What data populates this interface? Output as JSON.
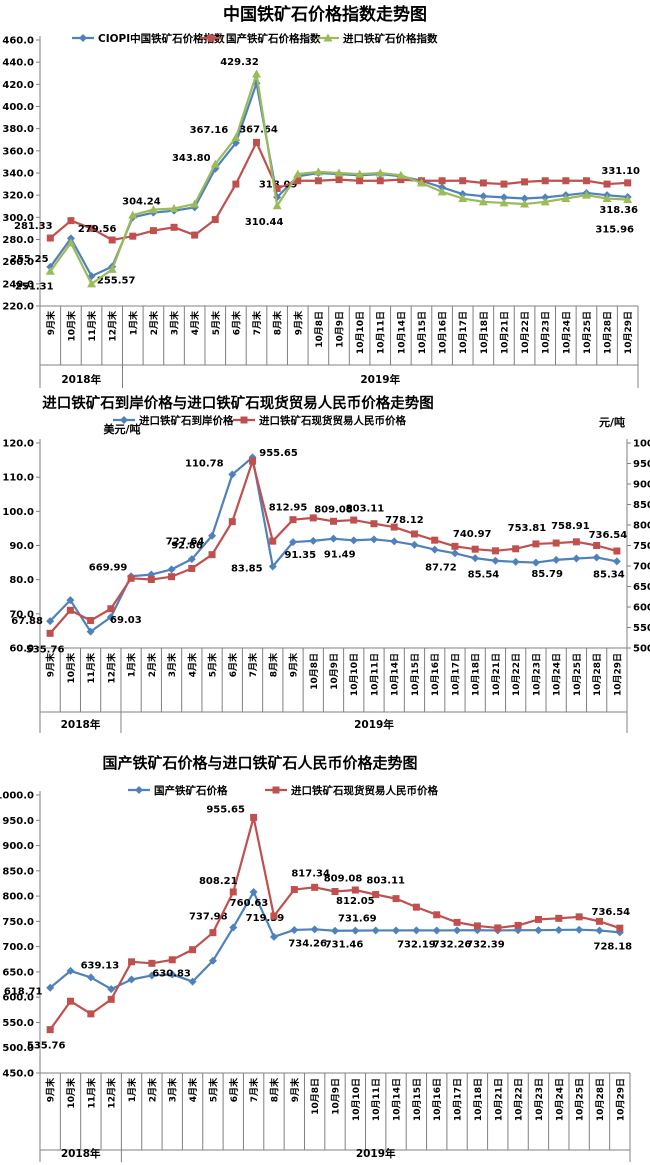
{
  "colors": {
    "blue": "#4F81BD",
    "red": "#C0504D",
    "green": "#9BBB59",
    "axis": "#808080",
    "text": "#000000"
  },
  "chart_data": [
    {
      "type": "line",
      "title": "中国铁矿石价格指数走势图",
      "y_axis": {
        "min": 220,
        "max": 460,
        "step": 20
      },
      "legend_position": "top",
      "grid": false,
      "categories": [
        "9月末",
        "10月末",
        "11月末",
        "12月末",
        "1月末",
        "2月末",
        "3月末",
        "4月末",
        "5月末",
        "6月末",
        "7月末",
        "8月末",
        "9月末",
        "10月8日",
        "10月9日",
        "10月10日",
        "10月11日",
        "10月14日",
        "10月15日",
        "10月16日",
        "10月17日",
        "10月18日",
        "10月21日",
        "10月22日",
        "10月23日",
        "10月24日",
        "10月25日",
        "10月28日",
        "10月29日"
      ],
      "year_groups": [
        {
          "label": "2018年",
          "count": 4
        },
        {
          "label": "2019年",
          "count": 25
        }
      ],
      "series": [
        {
          "name": "CIOPI中国铁矿石价格指数",
          "color": "#4F81BD",
          "marker": "diamond",
          "axis": "y",
          "values": [
            255.25,
            281,
            247,
            255.57,
            300,
            304.24,
            306,
            309,
            343.8,
            367.16,
            421,
            318.09,
            337,
            340,
            339,
            338,
            339,
            337,
            333,
            327,
            321,
            319,
            318,
            317,
            318,
            320,
            322,
            320,
            318.36
          ],
          "labels": [
            [
              0,
              "255.25",
              -21,
              -5
            ],
            [
              3,
              "255.57",
              4,
              17
            ],
            [
              5,
              "304.24",
              -12,
              -8
            ],
            [
              8,
              "343.80",
              -24,
              -8
            ],
            [
              9,
              "367.16",
              -27,
              -10
            ],
            [
              11,
              "318.09",
              1,
              -10
            ],
            [
              28,
              "318.36",
              -9,
              16
            ]
          ]
        },
        {
          "name": "国产铁矿石价格指数",
          "color": "#C0504D",
          "marker": "square",
          "axis": "y",
          "values": [
            281.33,
            297,
            290,
            279.56,
            283,
            288,
            291,
            284,
            298,
            330,
            367.64,
            326,
            333,
            333,
            334,
            333,
            333,
            334,
            333,
            333,
            333,
            331,
            330,
            332,
            333,
            333,
            333,
            330,
            331.1
          ],
          "labels": [
            [
              0,
              "281.33",
              -17,
              -9
            ],
            [
              3,
              "279.56",
              -15,
              -8
            ],
            [
              10,
              "367.64",
              2,
              -10
            ],
            [
              28,
              "331.10",
              -7,
              -9
            ]
          ]
        },
        {
          "name": "进口铁矿石价格指数",
          "color": "#9BBB59",
          "marker": "triangle",
          "axis": "y",
          "values": [
            251.31,
            277,
            240,
            253,
            302,
            307,
            308,
            312,
            348,
            372,
            429.32,
            310.44,
            339,
            341,
            340,
            339,
            340,
            338,
            331,
            323,
            317,
            314,
            313,
            312,
            314,
            317,
            320,
            317,
            315.96
          ],
          "labels": [
            [
              0,
              "251.31",
              -16,
              18
            ],
            [
              10,
              "429.32",
              -17,
              -9
            ],
            [
              11,
              "310.44",
              -13,
              19
            ],
            [
              28,
              "315.96",
              -13,
              33
            ]
          ]
        }
      ]
    },
    {
      "type": "line",
      "title": "进口铁矿石到岸价格与进口铁矿石现货贸易人民币价格走势图",
      "y_axis": {
        "title": "美元/吨",
        "min": 60,
        "max": 120,
        "step": 10
      },
      "y2_axis": {
        "title": "元/吨",
        "min": 500,
        "max": 1000,
        "step": 50
      },
      "legend_position": "top",
      "grid": false,
      "categories": [
        "9月末",
        "10月末",
        "11月末",
        "12月末",
        "1月末",
        "2月末",
        "3月末",
        "4月末",
        "5月末",
        "6月末",
        "7月末",
        "8月末",
        "9月末",
        "10月8日",
        "10月9日",
        "10月10日",
        "10月11日",
        "10月14日",
        "10月15日",
        "10月16日",
        "10月17日",
        "10月18日",
        "10月21日",
        "10月22日",
        "10月23日",
        "10月24日",
        "10月25日",
        "10月28日",
        "10月29日"
      ],
      "year_groups": [
        {
          "label": "2018年",
          "count": 4
        },
        {
          "label": "2019年",
          "count": 25
        }
      ],
      "series": [
        {
          "name": "进口铁矿石到岸价格",
          "color": "#4F81BD",
          "marker": "diamond",
          "axis": "y",
          "values": [
            67.88,
            74,
            64.8,
            69.03,
            81,
            81.5,
            83,
            86,
            92.86,
            110.78,
            115.8,
            83.85,
            91,
            91.35,
            92,
            91.49,
            91.8,
            91.2,
            90.2,
            88.8,
            87.72,
            86.3,
            85.54,
            85.2,
            85,
            85.79,
            86.2,
            86.5,
            85.34
          ],
          "labels": [
            [
              0,
              "67.88",
              -23,
              3
            ],
            [
              3,
              "69.03",
              15,
              6
            ],
            [
              8,
              "92.86",
              -25,
              13
            ],
            [
              9,
              "110.78",
              -28,
              -8
            ],
            [
              11,
              "83.85",
              -26,
              5
            ],
            [
              13,
              "91.35",
              -13,
              17
            ],
            [
              15,
              "91.49",
              -14,
              17
            ],
            [
              20,
              "87.72",
              -14,
              17
            ],
            [
              22,
              "85.54",
              -12,
              17
            ],
            [
              25,
              "85.79",
              -9,
              17
            ],
            [
              28,
              "85.34",
              -8,
              16
            ]
          ]
        },
        {
          "name": "进口铁矿石现货贸易人民币价格",
          "color": "#C0504D",
          "marker": "square",
          "axis": "y2",
          "values": [
            535.76,
            592,
            567,
            595.71,
            669.99,
            667,
            674,
            694,
            727.64,
            808.21,
            955.65,
            760.63,
            812.95,
            817.34,
            809.08,
            812.05,
            803.11,
            795,
            778.12,
            763,
            748,
            740.97,
            737,
            742,
            753.81,
            756,
            758.91,
            750,
            736.54
          ],
          "labels": [
            [
              0,
              "535.76",
              -5,
              19
            ],
            [
              4,
              "669.99",
              -23,
              -8
            ],
            [
              8,
              "727.64",
              -27,
              -10
            ],
            [
              10,
              "955.65",
              26,
              -5
            ],
            [
              12,
              "812.95",
              -5,
              -9
            ],
            [
              14,
              "809.08",
              0,
              -9
            ],
            [
              16,
              "803.11",
              -9,
              -12
            ],
            [
              18,
              "778.12",
              -10,
              -11
            ],
            [
              21,
              "740.97",
              -3,
              -12
            ],
            [
              24,
              "753.81",
              -9,
              -13
            ],
            [
              26,
              "758.91",
              -6,
              -13
            ],
            [
              28,
              "736.54",
              -9,
              -13
            ]
          ]
        }
      ]
    },
    {
      "type": "line",
      "title": "国产铁矿石价格与进口铁矿石人民币价格走势图",
      "y_axis": {
        "min": 450,
        "max": 1000,
        "step": 50
      },
      "legend_position": "top",
      "grid": false,
      "categories": [
        "9月末",
        "10月末",
        "11月末",
        "12月末",
        "1月末",
        "2月末",
        "3月末",
        "4月末",
        "5月末",
        "6月末",
        "7月末",
        "8月末",
        "9月末",
        "10月8日",
        "10月9日",
        "10月10日",
        "10月11日",
        "10月14日",
        "10月15日",
        "10月16日",
        "10月17日",
        "10月18日",
        "10月21日",
        "10月22日",
        "10月23日",
        "10月24日",
        "10月25日",
        "10月28日",
        "10月29日"
      ],
      "year_groups": [
        {
          "label": "2018年",
          "count": 4
        },
        {
          "label": "2019年",
          "count": 25
        }
      ],
      "series": [
        {
          "name": "国产铁矿石价格",
          "color": "#4F81BD",
          "marker": "diamond",
          "axis": "y",
          "values": [
            618.71,
            652,
            639.13,
            616,
            635,
            643,
            645,
            630.83,
            672,
            737.98,
            808,
            719.39,
            733,
            734.26,
            731.46,
            731.69,
            732,
            732,
            732.19,
            732,
            732.26,
            732.39,
            732,
            732.5,
            732.5,
            733,
            733.5,
            732,
            728.18
          ],
          "labels": [
            [
              0,
              "618.71",
              -27,
              7
            ],
            [
              2,
              "639.13",
              9,
              -9
            ],
            [
              7,
              "630.83",
              -21,
              -5
            ],
            [
              9,
              "737.98",
              -25,
              -8
            ],
            [
              11,
              "719.39",
              -9,
              -16
            ],
            [
              13,
              "734.26",
              -7,
              17
            ],
            [
              14,
              "731.46",
              9,
              17
            ],
            [
              15,
              "731.69",
              2,
              -9
            ],
            [
              18,
              "732.19",
              0,
              17
            ],
            [
              20,
              "732.26",
              -5,
              17
            ],
            [
              21,
              "732.39",
              8,
              17
            ],
            [
              28,
              "728.18",
              -7,
              17
            ]
          ]
        },
        {
          "name": "进口铁矿石现货贸易人民币价格",
          "color": "#C0504D",
          "marker": "square",
          "axis": "y",
          "values": [
            535.76,
            592,
            567,
            595.71,
            669.99,
            667,
            674,
            694,
            727.64,
            808.21,
            955.65,
            760.63,
            812.95,
            817.34,
            809.08,
            812.05,
            803.11,
            795,
            778.12,
            763,
            748,
            740.97,
            737,
            742,
            753.81,
            756,
            758.91,
            750,
            736.54
          ],
          "labels": [
            [
              0,
              "535.76",
              -4,
              19
            ],
            [
              9,
              "808.21",
              -15,
              -8
            ],
            [
              10,
              "955.65",
              -28,
              -5
            ],
            [
              11,
              "760.63",
              -25,
              -10
            ],
            [
              13,
              "817.34",
              -4,
              -11
            ],
            [
              14,
              "809.08",
              8,
              -10
            ],
            [
              15,
              "812.05",
              0,
              14
            ],
            [
              16,
              "803.11",
              10,
              -11
            ],
            [
              28,
              "736.54",
              -9,
              -13
            ]
          ]
        }
      ]
    }
  ]
}
